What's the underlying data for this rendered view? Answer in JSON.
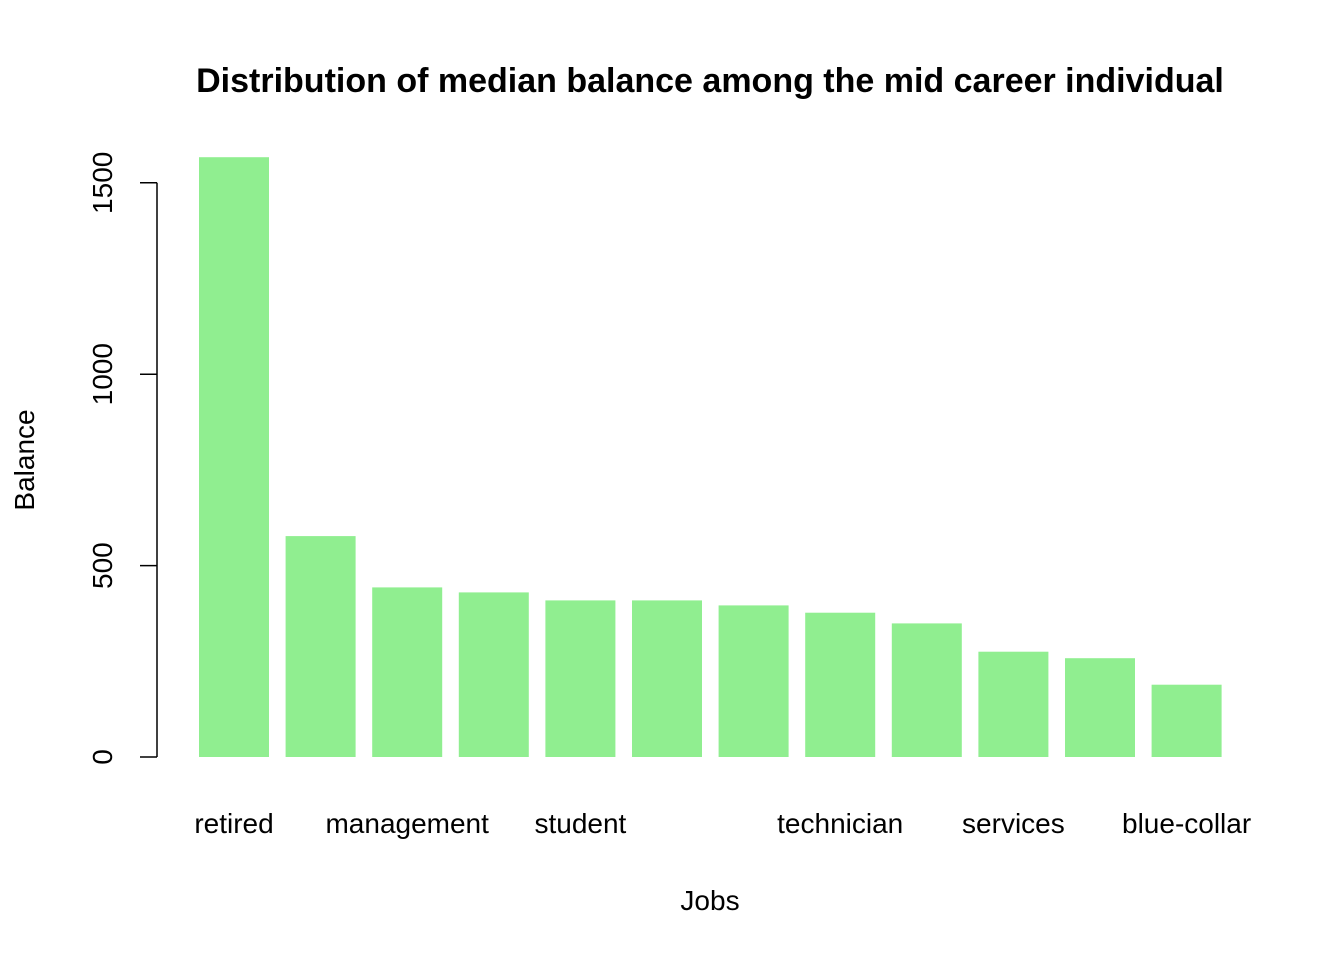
{
  "chart_data": {
    "type": "bar",
    "title": "Distribution of median balance among the mid career individual",
    "xlabel": "Jobs",
    "ylabel": "Balance",
    "ylim": [
      0,
      1600
    ],
    "yticks": [
      0,
      500,
      1000,
      1500
    ],
    "categories": [
      "retired",
      "",
      "management",
      "",
      "student",
      "",
      "",
      "technician",
      "",
      "services",
      "",
      "blue-collar"
    ],
    "values": [
      1567,
      577,
      443,
      430,
      409,
      409,
      396,
      377,
      349,
      275,
      258,
      189
    ],
    "bar_color": "#90EE90",
    "grid": false,
    "legend": "none"
  }
}
